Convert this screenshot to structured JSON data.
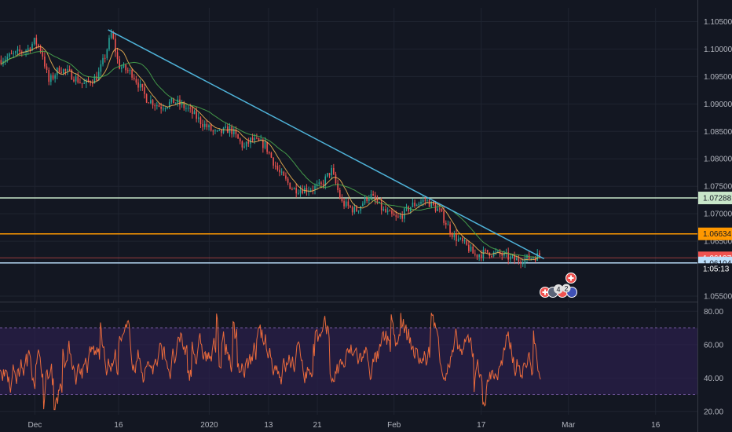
{
  "theme": {
    "background": "#131722",
    "grid": "#1f2430",
    "axis_text": "#b2b5be",
    "candle_up": "#26a69a",
    "candle_down": "#ef5350",
    "ma_fast": "#f7b955",
    "ma_slow": "#4caf50",
    "trendline": "#4fb3d9",
    "rsi_line": "#e96a3c",
    "rsi_band": "#2a1f4a",
    "rsi_bounds": "#7b5ea7"
  },
  "chart_data": [
    {
      "type": "candlestick",
      "pane": "price",
      "ylim": [
        1.054,
        1.1075
      ],
      "y_ticks": [
        "1.10500",
        "1.10000",
        "1.09500",
        "1.09000",
        "1.08500",
        "1.08000",
        "1.07500",
        "1.07000",
        "1.06500",
        "1.05500"
      ],
      "y_tick_values": [
        1.105,
        1.1,
        1.095,
        1.09,
        1.085,
        1.08,
        1.075,
        1.07,
        1.065,
        1.055
      ],
      "x_ticks": [
        "Dec",
        "16",
        "2020",
        "13",
        "21",
        "Feb",
        "17",
        "Mar",
        "16"
      ],
      "x_tick_positions": [
        0.05,
        0.17,
        0.3,
        0.385,
        0.455,
        0.565,
        0.69,
        0.815,
        0.94
      ],
      "anchors": [
        [
          0.0,
          1.098
        ],
        [
          0.02,
          1.099
        ],
        [
          0.04,
          1.1
        ],
        [
          0.05,
          1.1015
        ],
        [
          0.06,
          1.0995
        ],
        [
          0.07,
          1.094
        ],
        [
          0.085,
          1.0965
        ],
        [
          0.1,
          1.0955
        ],
        [
          0.12,
          1.0935
        ],
        [
          0.14,
          1.095
        ],
        [
          0.15,
          1.0985
        ],
        [
          0.16,
          1.103
        ],
        [
          0.17,
          1.097
        ],
        [
          0.19,
          1.0955
        ],
        [
          0.21,
          1.091
        ],
        [
          0.23,
          1.0895
        ],
        [
          0.25,
          1.0905
        ],
        [
          0.27,
          1.089
        ],
        [
          0.29,
          1.0865
        ],
        [
          0.31,
          1.0845
        ],
        [
          0.33,
          1.0855
        ],
        [
          0.35,
          1.082
        ],
        [
          0.36,
          1.0835
        ],
        [
          0.38,
          1.0825
        ],
        [
          0.4,
          1.0775
        ],
        [
          0.42,
          1.0745
        ],
        [
          0.44,
          1.0745
        ],
        [
          0.46,
          1.075
        ],
        [
          0.475,
          1.078
        ],
        [
          0.49,
          1.072
        ],
        [
          0.51,
          1.0705
        ],
        [
          0.53,
          1.0735
        ],
        [
          0.55,
          1.0705
        ],
        [
          0.57,
          1.069
        ],
        [
          0.59,
          1.0715
        ],
        [
          0.61,
          1.0725
        ],
        [
          0.63,
          1.0705
        ],
        [
          0.65,
          1.066
        ],
        [
          0.67,
          1.064
        ],
        [
          0.68,
          1.0625
        ],
        [
          0.7,
          1.063
        ],
        [
          0.72,
          1.0625
        ],
        [
          0.74,
          1.0615
        ],
        [
          0.76,
          1.062
        ],
        [
          0.775,
          1.0625
        ]
      ],
      "current_price": "1.06197",
      "countdown": "1:05:13",
      "ma_label": "",
      "trendline": {
        "from": [
          0.155,
          1.1035
        ],
        "to": [
          0.78,
          1.0618
        ]
      },
      "horizontal_levels": [
        {
          "value": 1.07288,
          "label": "1.07288",
          "color": "#c8e6c9",
          "text_color": "#131722"
        },
        {
          "value": 1.06634,
          "label": "1.06634",
          "color": "#ff9800",
          "text_color": "#131722"
        },
        {
          "value": 1.06197,
          "label": "1.06197",
          "color": "#ef5350",
          "text_color": "#ffffff",
          "thin": true
        },
        {
          "value": 1.06104,
          "label": "1.06104",
          "color": "#bbdefb",
          "text_color": "#131722"
        }
      ],
      "events": {
        "count_left": "4",
        "count_right": "2"
      }
    },
    {
      "type": "line",
      "pane": "rsi",
      "ylim": [
        18,
        82
      ],
      "y_ticks": [
        "80.00",
        "60.00",
        "40.00",
        "20.00"
      ],
      "y_tick_values": [
        80,
        60,
        40,
        20
      ],
      "upper_bound": 70,
      "lower_bound": 30
    }
  ]
}
